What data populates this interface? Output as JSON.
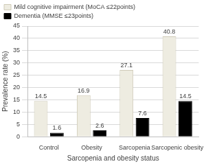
{
  "chart_data": {
    "type": "bar",
    "categories": [
      "Control",
      "Obesity",
      "Sarcopenia",
      "Sarcopenic obesity"
    ],
    "series": [
      {
        "name": "Mild cognitive impairment (MoCA ≤22points)",
        "color": "#eeece1",
        "values": [
          14.5,
          16.9,
          27.1,
          40.8
        ]
      },
      {
        "name": "Dementia (MMSE ≤23points)",
        "color": "#000000",
        "values": [
          1.6,
          2.6,
          7.6,
          14.5
        ]
      }
    ],
    "x_label": "Sarcopenia and obesity status",
    "y_label": "Prevalence rate (%)",
    "ylim": [
      0,
      45
    ],
    "yticks": [
      0,
      5,
      10,
      15,
      20,
      25,
      30,
      35,
      40,
      45
    ],
    "grid": true,
    "legend": "top-left",
    "data_labels": true
  }
}
